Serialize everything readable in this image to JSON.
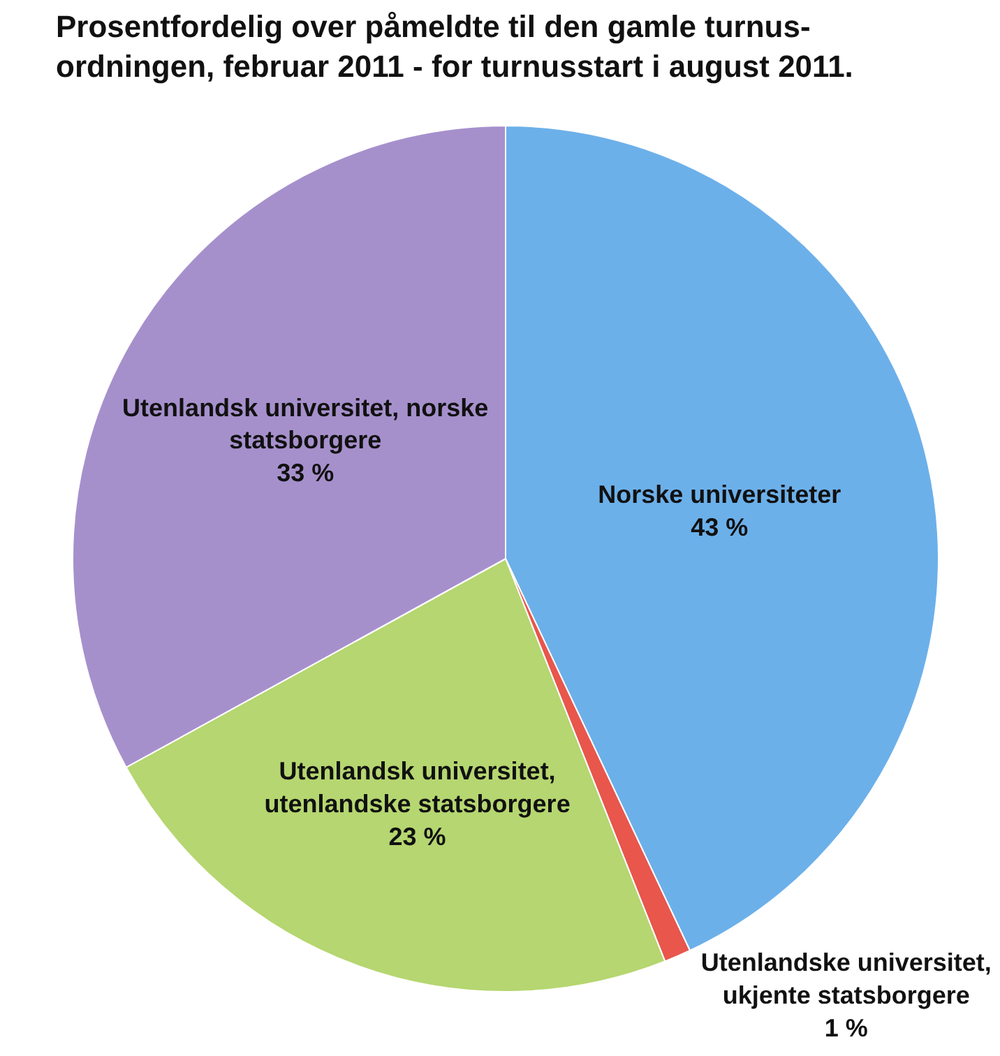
{
  "chart_data": {
    "type": "pie",
    "title": "Prosentfordelig over påmeldte til den gamle turnus-ordningen, februar 2011 - for turnusstart i august 2011.",
    "categories": [
      "Norske universiteter",
      "Utenlandske universitet, ukjente statsborgere",
      "Utenlandsk universitet, utenlandske statsborgere",
      "Utenlandsk universitet, norske statsborgere"
    ],
    "values": [
      43,
      1,
      23,
      33
    ],
    "colors": [
      "#6cb0ea",
      "#e8564c",
      "#b5d670",
      "#a690cc"
    ],
    "value_labels": [
      "43 %",
      "1 %",
      "23 %",
      "33 %"
    ]
  }
}
